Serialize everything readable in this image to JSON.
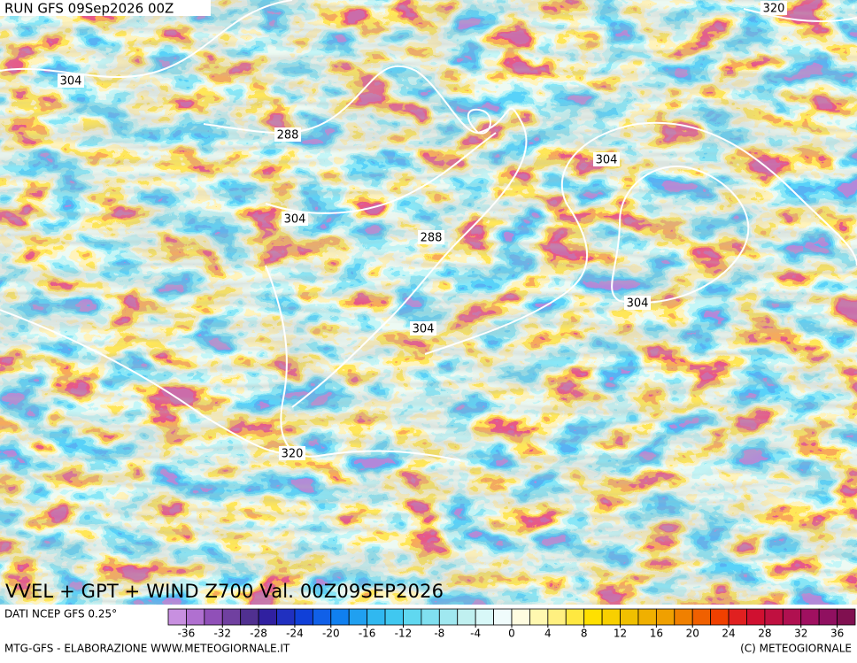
{
  "run_label": "RUN GFS 09Sep2026 00Z",
  "map_title": "VVEL + GPT + WIND Z700 Val. 00Z09SEP2026",
  "contour_labels": [
    "304",
    "288",
    "304",
    "288",
    "304",
    "304",
    "304",
    "320",
    "320"
  ],
  "source_label": "DATI NCEP GFS 0.25°",
  "colorbar": {
    "lim": [
      -38,
      38
    ],
    "ticks": [
      -36,
      -32,
      -28,
      -24,
      -20,
      -16,
      -12,
      -8,
      -4,
      0,
      4,
      8,
      12,
      16,
      20,
      24,
      28,
      32,
      36
    ],
    "colors": [
      "#c890e0",
      "#b070d0",
      "#9050b8",
      "#7040a0",
      "#503090",
      "#3020a0",
      "#2030c0",
      "#1040d8",
      "#1060e8",
      "#1080f0",
      "#20a0f0",
      "#30b8f0",
      "#40c8f0",
      "#60d8f0",
      "#80e0f0",
      "#a0e8f0",
      "#c0f0f0",
      "#d8f8f8",
      "#f0fcfc",
      "#fffce0",
      "#fff8b0",
      "#fff080",
      "#ffe840",
      "#ffe000",
      "#f8d000",
      "#f0c000",
      "#f0b000",
      "#f0a000",
      "#f08000",
      "#f06000",
      "#f04000",
      "#e02020",
      "#d01030",
      "#c01040",
      "#b01050",
      "#a01060",
      "#901060",
      "#801050"
    ]
  },
  "footer_left": "MTG-GFS - ELABORAZIONE WWW.METEOGIORNALE.IT",
  "footer_right": "(C) METEOGIORNALE"
}
